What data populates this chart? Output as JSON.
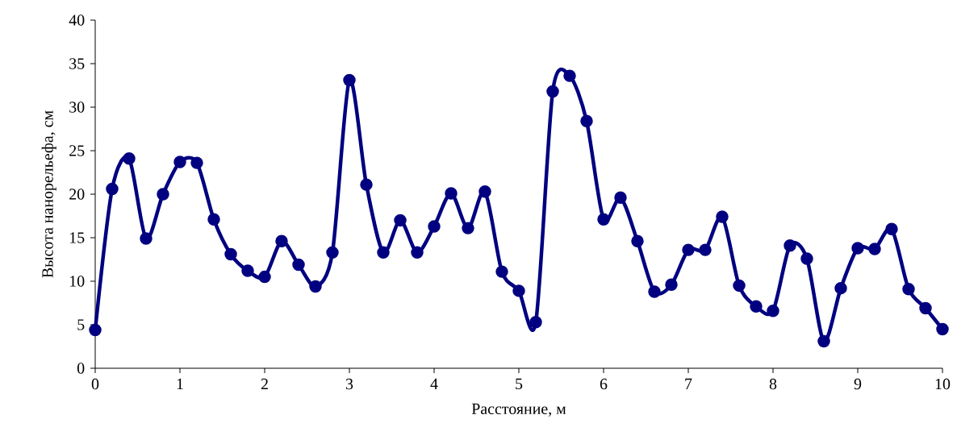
{
  "chart_data": {
    "type": "line",
    "xlabel": "Расстояние, м",
    "ylabel": "Высота нанорельефа, см",
    "x": [
      0,
      0.2,
      0.4,
      0.6,
      0.8,
      1.0,
      1.2,
      1.4,
      1.6,
      1.8,
      2.0,
      2.2,
      2.4,
      2.6,
      2.8,
      3.0,
      3.2,
      3.4,
      3.6,
      3.8,
      4.0,
      4.2,
      4.4,
      4.6,
      4.8,
      5.0,
      5.2,
      5.4,
      5.6,
      5.8,
      6.0,
      6.2,
      6.4,
      6.6,
      6.8,
      7.0,
      7.2,
      7.4,
      7.6,
      7.8,
      8.0,
      8.2,
      8.4,
      8.6,
      8.8,
      9.0,
      9.2,
      9.4,
      9.6,
      9.8,
      10
    ],
    "values": [
      4.4,
      20.6,
      24.1,
      14.9,
      20.0,
      23.7,
      23.6,
      17.1,
      13.1,
      11.2,
      10.5,
      14.6,
      11.9,
      9.4,
      13.3,
      33.1,
      21.1,
      13.3,
      17.0,
      13.3,
      16.3,
      20.1,
      16.1,
      20.3,
      11.1,
      8.9,
      5.3,
      31.8,
      33.6,
      28.4,
      17.1,
      19.6,
      14.6,
      8.8,
      9.6,
      13.6,
      13.6,
      17.4,
      9.5,
      7.1,
      6.6,
      14.1,
      12.6,
      3.1,
      9.2,
      13.8,
      13.7,
      16.0,
      9.1,
      6.9,
      4.5
    ],
    "color": "#000080",
    "marker": "circle",
    "line_style": "solid",
    "xlim": [
      0,
      10
    ],
    "ylim": [
      0,
      40
    ],
    "xticks": [
      0,
      1,
      2,
      3,
      4,
      5,
      6,
      7,
      8,
      9,
      10
    ],
    "yticks": [
      0,
      5,
      10,
      15,
      20,
      25,
      30,
      35,
      40
    ]
  }
}
